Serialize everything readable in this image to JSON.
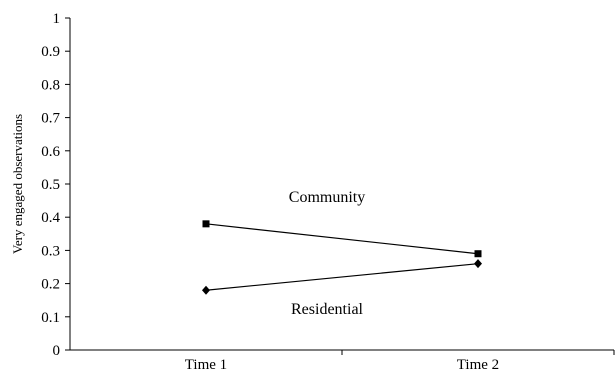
{
  "chart_data": {
    "type": "line",
    "ylabel": "Very engaged observations",
    "xlabel": "",
    "categories": [
      "Time 1",
      "Time 2"
    ],
    "ylim": [
      0,
      1
    ],
    "yticks": [
      "0",
      "0.1",
      "0.2",
      "0.3",
      "0.4",
      "0.5",
      "0.6",
      "0.7",
      "0.8",
      "0.9",
      "1"
    ],
    "grid": false,
    "legend": "none",
    "series": [
      {
        "name": "Community",
        "values": [
          0.38,
          0.29
        ],
        "marker": "square"
      },
      {
        "name": "Residential",
        "values": [
          0.18,
          0.26
        ],
        "marker": "diamond"
      }
    ],
    "colors": {
      "line": "#000000",
      "axis": "#000000"
    }
  }
}
